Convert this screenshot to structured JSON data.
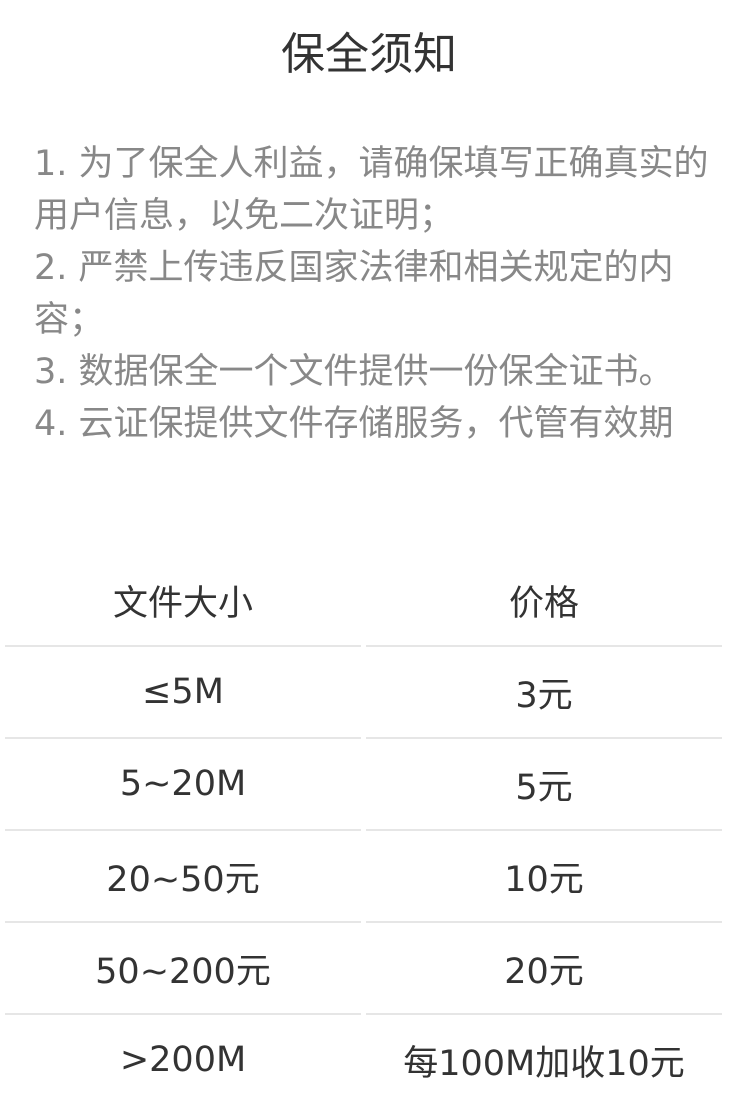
{
  "title": "保全须知",
  "notices": [
    "1. 为了保全人利益，请确保填写正确真实的用户信息，以免二次证明；",
    "2. 严禁上传违反国家法律和相关规定的内容；",
    "3. 数据保全一个文件提供一份保全证书。",
    "4. 云证保提供文件存储服务，代管有效期"
  ],
  "table": {
    "headers": [
      "文件大小",
      "价格"
    ],
    "rows": [
      [
        "≤5M",
        "3元"
      ],
      [
        "5~20M",
        "5元"
      ],
      [
        "20~50元",
        "10元"
      ],
      [
        "50~200元",
        "20元"
      ],
      [
        ">200M",
        "每100M加收10元"
      ]
    ]
  }
}
